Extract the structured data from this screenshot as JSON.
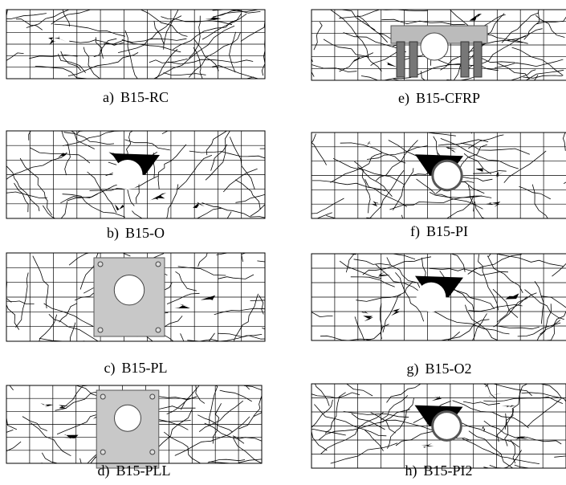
{
  "panels": [
    {
      "label": "a)",
      "name": "B15-RC"
    },
    {
      "label": "b)",
      "name": "B15-O"
    },
    {
      "label": "c)",
      "name": "B15-PL"
    },
    {
      "label": "d)",
      "name": "B15-PLL"
    },
    {
      "label": "e)",
      "name": "B15-CFRP"
    },
    {
      "label": "f)",
      "name": "B15-PI"
    },
    {
      "label": "g)",
      "name": "B15-O2"
    },
    {
      "label": "h)",
      "name": "B15-PI2"
    }
  ]
}
